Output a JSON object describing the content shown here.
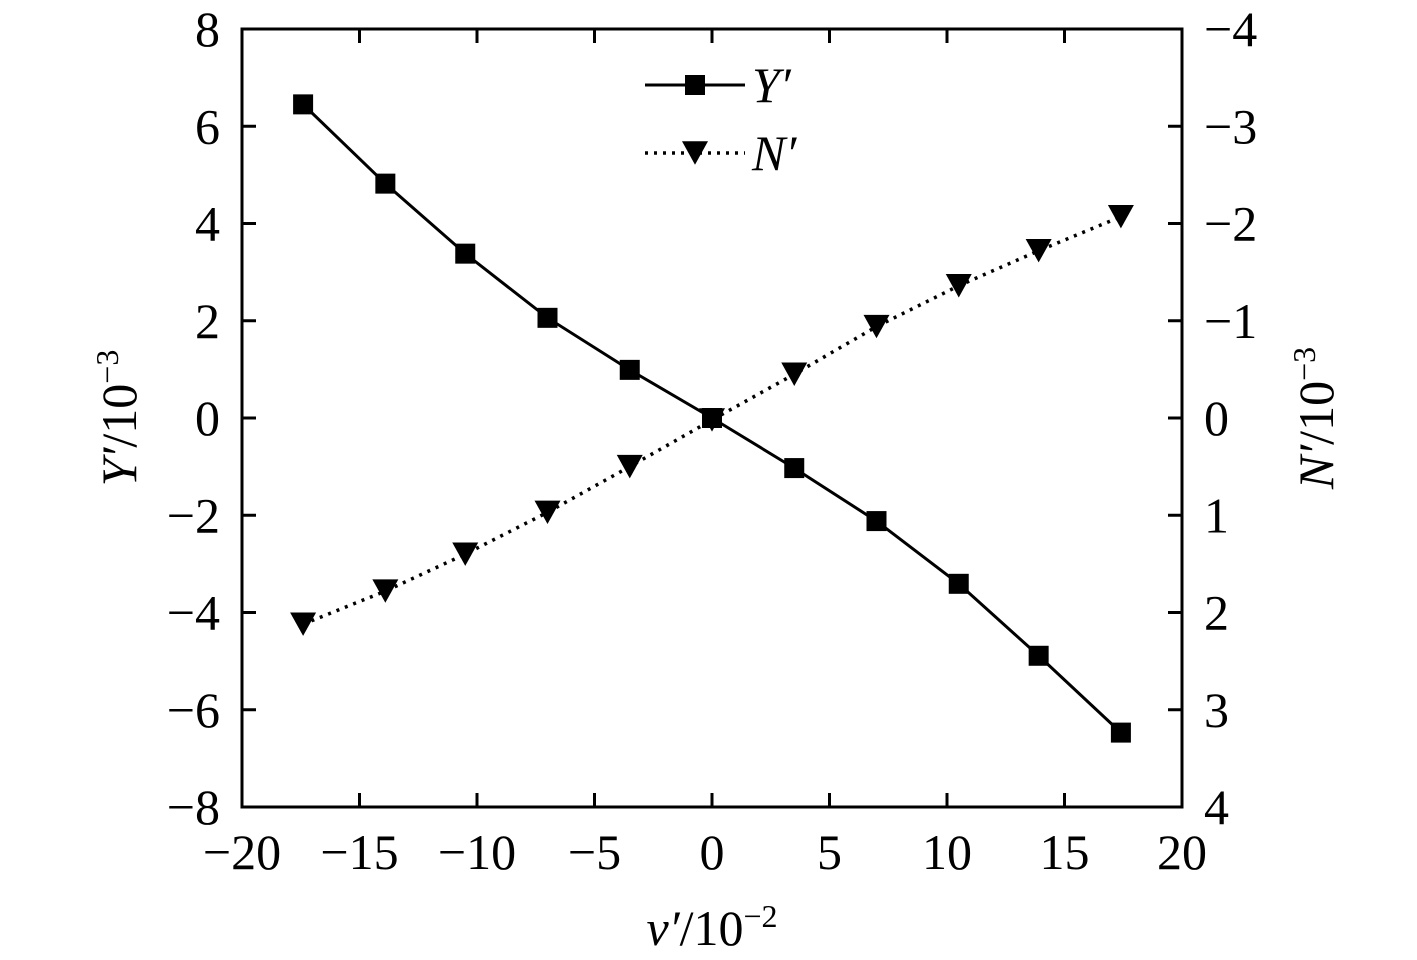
{
  "chart_data": {
    "type": "line",
    "x": [
      -17.4,
      -13.9,
      -10.5,
      -7.0,
      -3.5,
      0,
      3.5,
      7.0,
      10.5,
      13.9,
      17.4
    ],
    "series": [
      {
        "name": "Y′",
        "axis": "left",
        "marker": "square",
        "line_style": "solid",
        "values": [
          6.45,
          4.82,
          3.38,
          2.06,
          0.99,
          0.0,
          -1.03,
          -2.12,
          -3.41,
          -4.89,
          -6.47
        ]
      },
      {
        "name": "N′",
        "axis": "right",
        "marker": "triangle-down",
        "line_style": "dotted",
        "values": [
          2.12,
          1.78,
          1.4,
          0.97,
          0.5,
          0.02,
          -0.45,
          -0.94,
          -1.36,
          -1.72,
          -2.07
        ]
      }
    ],
    "xlim": [
      -20,
      20
    ],
    "xticks": [
      -20,
      -15,
      -10,
      -5,
      0,
      5,
      10,
      15,
      20
    ],
    "xtick_labels": [
      "−20",
      "−15",
      "−10",
      "−5",
      "0",
      "5",
      "10",
      "15",
      "20"
    ],
    "ylim_left": [
      -8,
      8
    ],
    "yticks_left": [
      8,
      6,
      4,
      2,
      0,
      -2,
      -4,
      -6,
      -8
    ],
    "ytick_labels_left": [
      "8",
      "6",
      "4",
      "2",
      "0",
      "−2",
      "−4",
      "−6",
      "−8"
    ],
    "ylim_right": [
      4,
      -4
    ],
    "yticks_right": [
      -4,
      -3,
      -2,
      -1,
      0,
      1,
      2,
      3,
      4
    ],
    "ytick_labels_right": [
      "−4",
      "−3",
      "−2",
      "−1",
      "0",
      "1",
      "2",
      "3",
      "4"
    ],
    "xlabel": {
      "var": "v′",
      "base": "/10",
      "exp": "−2"
    },
    "ylabel_left": {
      "var": "Y′",
      "base": "/10",
      "exp": "−3"
    },
    "ylabel_right": {
      "var": "N′",
      "base": "/10",
      "exp": "−3"
    },
    "legend_position": "top-center",
    "grid": false,
    "colors": {
      "line": "#000000",
      "background": "#ffffff"
    }
  }
}
